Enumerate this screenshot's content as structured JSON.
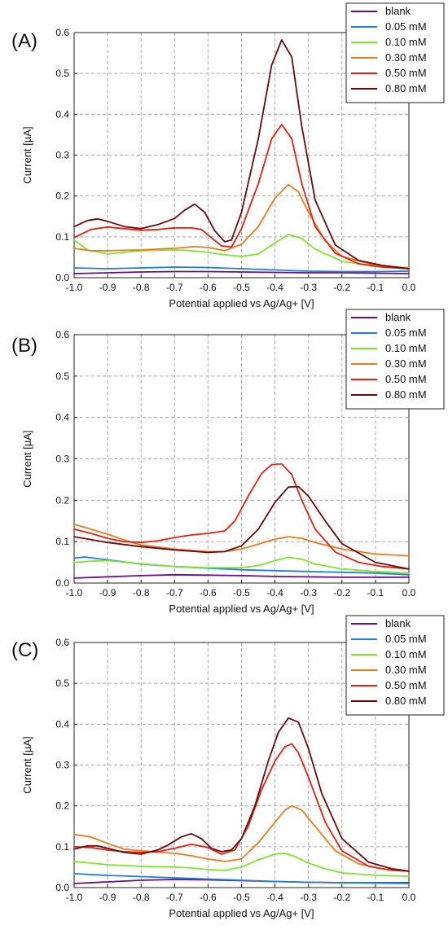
{
  "figure": {
    "panel_labels": [
      "(A)",
      "(B)",
      "(C)"
    ],
    "colors": {
      "blank": "#6a0d8a",
      "0.05 mM": "#1f7fe0",
      "0.10 mM": "#7ee52a",
      "0.30 mM": "#f07a1a",
      "0.50 mM": "#e8200e",
      "0.80 mM": "#6a0a0a"
    }
  },
  "chart_data": [
    {
      "type": "line",
      "panel_label": "(A)",
      "xlabel": "Potential applied vs Ag/Ag+ [V]",
      "ylabel": "Current [µA]",
      "xlim": [
        -1.0,
        0.0
      ],
      "ylim": [
        0.0,
        0.6
      ],
      "xticks": [
        "-1.0",
        "-0.9",
        "-0.8",
        "-0.7",
        "-0.6",
        "-0.5",
        "-0.4",
        "-0.3",
        "-0.2",
        "-0.1",
        "0.0"
      ],
      "yticks": [
        "0.0",
        "0.1",
        "0.2",
        "0.3",
        "0.4",
        "0.5",
        "0.6"
      ],
      "grid": true,
      "legend": "top-right",
      "series": [
        {
          "name": "blank",
          "x": [
            -1.0,
            -0.9,
            -0.8,
            -0.7,
            -0.6,
            -0.5,
            -0.4,
            -0.3,
            -0.2,
            -0.1,
            0.0
          ],
          "y": [
            0.01,
            0.012,
            0.014,
            0.015,
            0.015,
            0.014,
            0.013,
            0.012,
            0.012,
            0.011,
            0.01
          ]
        },
        {
          "name": "0.05 mM",
          "x": [
            -1.0,
            -0.9,
            -0.8,
            -0.7,
            -0.6,
            -0.5,
            -0.4,
            -0.3,
            -0.2,
            -0.1,
            0.0
          ],
          "y": [
            0.024,
            0.022,
            0.024,
            0.026,
            0.025,
            0.022,
            0.019,
            0.016,
            0.015,
            0.015,
            0.016
          ]
        },
        {
          "name": "0.10 mM",
          "x": [
            -1.0,
            -0.96,
            -0.9,
            -0.8,
            -0.7,
            -0.65,
            -0.6,
            -0.55,
            -0.5,
            -0.45,
            -0.4,
            -0.36,
            -0.32,
            -0.28,
            -0.2,
            -0.1,
            0.0
          ],
          "y": [
            0.092,
            0.068,
            0.058,
            0.066,
            0.068,
            0.066,
            0.062,
            0.056,
            0.052,
            0.058,
            0.085,
            0.106,
            0.096,
            0.07,
            0.04,
            0.028,
            0.022
          ]
        },
        {
          "name": "0.30 mM",
          "x": [
            -1.0,
            -0.95,
            -0.9,
            -0.8,
            -0.7,
            -0.64,
            -0.6,
            -0.55,
            -0.5,
            -0.45,
            -0.4,
            -0.36,
            -0.33,
            -0.3,
            -0.25,
            -0.2,
            -0.1,
            0.0
          ],
          "y": [
            0.072,
            0.066,
            0.066,
            0.068,
            0.072,
            0.076,
            0.074,
            0.066,
            0.082,
            0.125,
            0.195,
            0.228,
            0.21,
            0.16,
            0.09,
            0.052,
            0.03,
            0.024
          ]
        },
        {
          "name": "0.50 mM",
          "x": [
            -1.0,
            -0.95,
            -0.9,
            -0.85,
            -0.8,
            -0.75,
            -0.7,
            -0.65,
            -0.62,
            -0.59,
            -0.56,
            -0.53,
            -0.5,
            -0.45,
            -0.41,
            -0.38,
            -0.35,
            -0.32,
            -0.28,
            -0.22,
            -0.15,
            -0.08,
            0.0
          ],
          "y": [
            0.098,
            0.118,
            0.124,
            0.12,
            0.116,
            0.118,
            0.122,
            0.122,
            0.118,
            0.098,
            0.078,
            0.075,
            0.12,
            0.23,
            0.34,
            0.375,
            0.34,
            0.23,
            0.125,
            0.06,
            0.034,
            0.026,
            0.022
          ]
        },
        {
          "name": "0.80 mM",
          "x": [
            -1.0,
            -0.96,
            -0.93,
            -0.9,
            -0.85,
            -0.8,
            -0.75,
            -0.7,
            -0.67,
            -0.64,
            -0.61,
            -0.58,
            -0.55,
            -0.53,
            -0.5,
            -0.45,
            -0.41,
            -0.38,
            -0.35,
            -0.32,
            -0.28,
            -0.22,
            -0.15,
            -0.08,
            0.0
          ],
          "y": [
            0.125,
            0.14,
            0.144,
            0.138,
            0.125,
            0.12,
            0.13,
            0.145,
            0.165,
            0.18,
            0.16,
            0.115,
            0.088,
            0.092,
            0.16,
            0.34,
            0.52,
            0.582,
            0.54,
            0.37,
            0.19,
            0.08,
            0.042,
            0.03,
            0.022
          ]
        }
      ]
    },
    {
      "type": "line",
      "panel_label": "(B)",
      "xlabel": "Potential applied vs Ag/Ag+ [V]",
      "ylabel": "Current [µA]",
      "xlim": [
        -1.0,
        0.0
      ],
      "ylim": [
        0.0,
        0.6
      ],
      "xticks": [
        "-1.0",
        "-0.9",
        "-0.8",
        "-0.7",
        "-0.6",
        "-0.5",
        "-0.4",
        "-0.3",
        "-0.2",
        "-0.1",
        "0.0"
      ],
      "yticks": [
        "0.0",
        "0.1",
        "0.2",
        "0.3",
        "0.4",
        "0.5",
        "0.6"
      ],
      "grid": true,
      "legend": "top-right",
      "series": [
        {
          "name": "blank",
          "x": [
            -1.0,
            -0.9,
            -0.8,
            -0.7,
            -0.6,
            -0.5,
            -0.4,
            -0.3,
            -0.2,
            -0.1,
            0.0
          ],
          "y": [
            0.012,
            0.015,
            0.018,
            0.02,
            0.019,
            0.018,
            0.016,
            0.015,
            0.014,
            0.014,
            0.014
          ]
        },
        {
          "name": "0.05 mM",
          "x": [
            -1.0,
            -0.97,
            -0.9,
            -0.8,
            -0.7,
            -0.6,
            -0.5,
            -0.4,
            -0.3,
            -0.2,
            -0.1,
            0.0
          ],
          "y": [
            0.06,
            0.063,
            0.056,
            0.046,
            0.04,
            0.036,
            0.032,
            0.03,
            0.028,
            0.026,
            0.024,
            0.02
          ]
        },
        {
          "name": "0.10 mM",
          "x": [
            -1.0,
            -0.95,
            -0.9,
            -0.8,
            -0.7,
            -0.6,
            -0.5,
            -0.45,
            -0.4,
            -0.36,
            -0.32,
            -0.28,
            -0.2,
            -0.1,
            0.0
          ],
          "y": [
            0.05,
            0.053,
            0.054,
            0.047,
            0.04,
            0.037,
            0.037,
            0.042,
            0.054,
            0.062,
            0.058,
            0.046,
            0.034,
            0.028,
            0.024
          ]
        },
        {
          "name": "0.30 mM",
          "x": [
            -1.0,
            -0.95,
            -0.9,
            -0.85,
            -0.8,
            -0.7,
            -0.6,
            -0.55,
            -0.5,
            -0.45,
            -0.4,
            -0.36,
            -0.32,
            -0.28,
            -0.2,
            -0.1,
            0.0
          ],
          "y": [
            0.142,
            0.13,
            0.118,
            0.104,
            0.092,
            0.082,
            0.076,
            0.076,
            0.082,
            0.094,
            0.106,
            0.112,
            0.108,
            0.098,
            0.082,
            0.07,
            0.066
          ]
        },
        {
          "name": "0.50 mM",
          "x": [
            -1.0,
            -0.95,
            -0.9,
            -0.85,
            -0.8,
            -0.75,
            -0.7,
            -0.65,
            -0.6,
            -0.55,
            -0.52,
            -0.48,
            -0.44,
            -0.41,
            -0.38,
            -0.35,
            -0.32,
            -0.28,
            -0.22,
            -0.15,
            -0.08,
            0.0
          ],
          "y": [
            0.13,
            0.12,
            0.108,
            0.1,
            0.098,
            0.102,
            0.11,
            0.116,
            0.12,
            0.126,
            0.15,
            0.21,
            0.265,
            0.286,
            0.288,
            0.262,
            0.2,
            0.13,
            0.075,
            0.05,
            0.04,
            0.034
          ]
        },
        {
          "name": "0.80 mM",
          "x": [
            -1.0,
            -0.9,
            -0.8,
            -0.7,
            -0.6,
            -0.55,
            -0.5,
            -0.45,
            -0.4,
            -0.36,
            -0.33,
            -0.3,
            -0.25,
            -0.2,
            -0.1,
            0.0
          ],
          "y": [
            0.112,
            0.098,
            0.088,
            0.08,
            0.074,
            0.076,
            0.09,
            0.13,
            0.195,
            0.232,
            0.233,
            0.21,
            0.15,
            0.095,
            0.05,
            0.034
          ]
        }
      ]
    },
    {
      "type": "line",
      "panel_label": "(C)",
      "xlabel": "Potential applied vs Ag/Ag+ [V]",
      "ylabel": "Current [µA]",
      "xlim": [
        -1.0,
        0.0
      ],
      "ylim": [
        0.0,
        0.6
      ],
      "xticks": [
        "-1.0",
        "-0.9",
        "-0.8",
        "-0.7",
        "-0.6",
        "-0.5",
        "-0.4",
        "-0.3",
        "-0.2",
        "-0.1",
        "0.0"
      ],
      "yticks": [
        "0.0",
        "0.1",
        "0.2",
        "0.3",
        "0.4",
        "0.5",
        "0.6"
      ],
      "grid": true,
      "legend": "top-right",
      "series": [
        {
          "name": "blank",
          "x": [
            -1.0,
            -0.9,
            -0.8,
            -0.7,
            -0.6,
            -0.5,
            -0.4,
            -0.3,
            -0.2,
            -0.1,
            0.0
          ],
          "y": [
            0.01,
            0.014,
            0.018,
            0.02,
            0.019,
            0.017,
            0.015,
            0.013,
            0.012,
            0.012,
            0.012
          ]
        },
        {
          "name": "0.05 mM",
          "x": [
            -1.0,
            -0.9,
            -0.8,
            -0.7,
            -0.6,
            -0.5,
            -0.4,
            -0.3,
            -0.2,
            -0.1,
            0.0
          ],
          "y": [
            0.034,
            0.03,
            0.027,
            0.024,
            0.021,
            0.018,
            0.015,
            0.013,
            0.012,
            0.011,
            0.01
          ]
        },
        {
          "name": "0.10 mM",
          "x": [
            -1.0,
            -0.9,
            -0.8,
            -0.7,
            -0.65,
            -0.6,
            -0.55,
            -0.5,
            -0.45,
            -0.4,
            -0.37,
            -0.34,
            -0.3,
            -0.25,
            -0.2,
            -0.1,
            0.0
          ],
          "y": [
            0.064,
            0.056,
            0.052,
            0.05,
            0.048,
            0.044,
            0.042,
            0.05,
            0.068,
            0.082,
            0.084,
            0.076,
            0.06,
            0.046,
            0.036,
            0.03,
            0.028
          ]
        },
        {
          "name": "0.30 mM",
          "x": [
            -1.0,
            -0.95,
            -0.9,
            -0.85,
            -0.8,
            -0.7,
            -0.65,
            -0.6,
            -0.55,
            -0.5,
            -0.45,
            -0.4,
            -0.37,
            -0.35,
            -0.32,
            -0.28,
            -0.22,
            -0.15,
            -0.08,
            0.0
          ],
          "y": [
            0.13,
            0.124,
            0.108,
            0.094,
            0.09,
            0.084,
            0.078,
            0.07,
            0.064,
            0.07,
            0.11,
            0.16,
            0.19,
            0.2,
            0.19,
            0.15,
            0.09,
            0.058,
            0.046,
            0.04
          ]
        },
        {
          "name": "0.50 mM",
          "x": [
            -1.0,
            -0.95,
            -0.9,
            -0.85,
            -0.8,
            -0.75,
            -0.7,
            -0.65,
            -0.6,
            -0.56,
            -0.52,
            -0.48,
            -0.44,
            -0.4,
            -0.37,
            -0.35,
            -0.33,
            -0.3,
            -0.25,
            -0.2,
            -0.12,
            -0.05,
            0.0
          ],
          "y": [
            0.1,
            0.098,
            0.092,
            0.088,
            0.086,
            0.088,
            0.096,
            0.106,
            0.098,
            0.082,
            0.092,
            0.15,
            0.24,
            0.31,
            0.345,
            0.352,
            0.33,
            0.27,
            0.16,
            0.09,
            0.052,
            0.042,
            0.04
          ]
        },
        {
          "name": "0.80 mM",
          "x": [
            -1.0,
            -0.96,
            -0.93,
            -0.9,
            -0.85,
            -0.8,
            -0.75,
            -0.72,
            -0.68,
            -0.65,
            -0.62,
            -0.59,
            -0.56,
            -0.53,
            -0.5,
            -0.46,
            -0.42,
            -0.39,
            -0.36,
            -0.33,
            -0.3,
            -0.26,
            -0.2,
            -0.12,
            -0.05,
            0.0
          ],
          "y": [
            0.094,
            0.102,
            0.102,
            0.096,
            0.086,
            0.082,
            0.092,
            0.104,
            0.124,
            0.132,
            0.12,
            0.096,
            0.088,
            0.092,
            0.12,
            0.2,
            0.31,
            0.38,
            0.415,
            0.405,
            0.34,
            0.23,
            0.12,
            0.062,
            0.046,
            0.04
          ]
        }
      ]
    }
  ]
}
